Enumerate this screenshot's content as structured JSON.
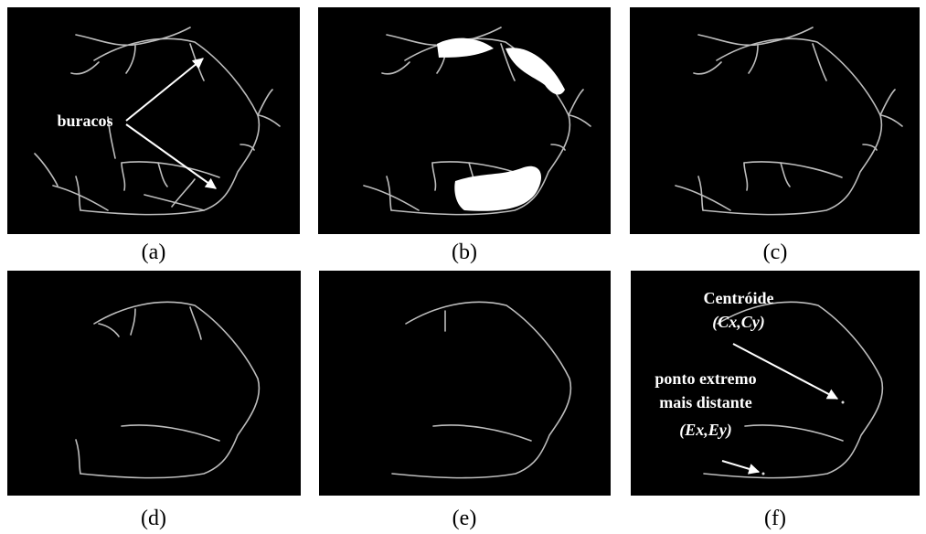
{
  "panels": [
    {
      "label": "(a)"
    },
    {
      "label": "(b)"
    },
    {
      "label": "(c)"
    },
    {
      "label": "(d)"
    },
    {
      "label": "(e)"
    },
    {
      "label": "(f)"
    }
  ],
  "annotations": {
    "holes": "buracos",
    "centroid": "Centróide",
    "centroid_coords": "(Cx,Cy)",
    "extreme_lines": [
      "ponto extremo",
      "mais distante"
    ],
    "extreme_coords": "(Ex,Ey)"
  }
}
